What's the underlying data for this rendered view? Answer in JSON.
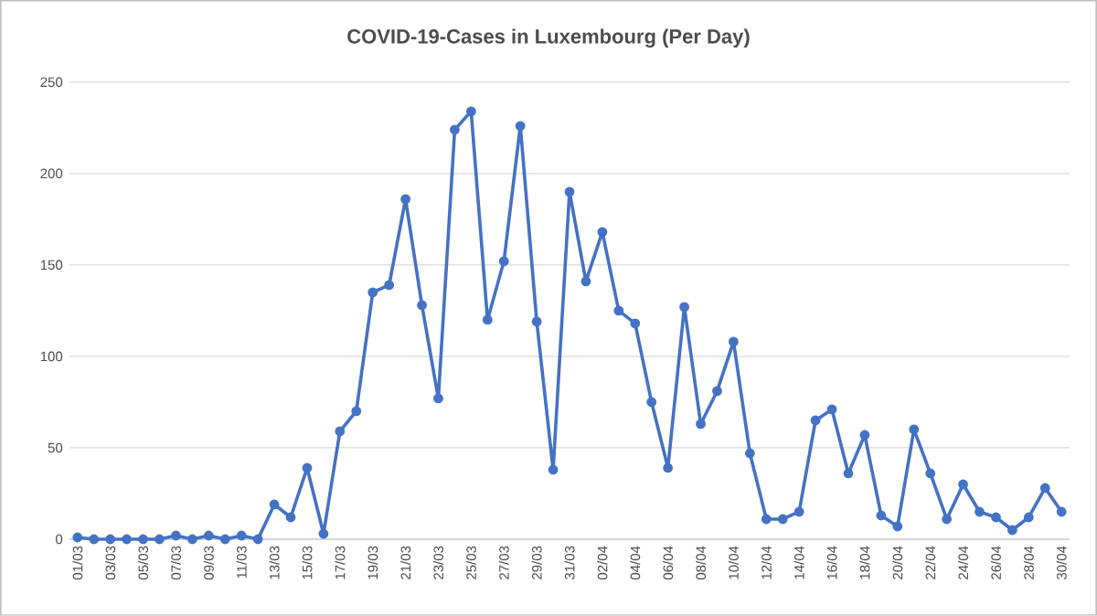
{
  "chart_data": {
    "type": "line",
    "title": "COVID-19-Cases in Luxembourg (Per Day)",
    "categories": [
      "01/03",
      null,
      "03/03",
      null,
      "05/03",
      null,
      "07/03",
      null,
      "09/03",
      null,
      "11/03",
      null,
      "13/03",
      null,
      "15/03",
      null,
      "17/03",
      null,
      "19/03",
      null,
      "21/03",
      null,
      "23/03",
      null,
      "25/03",
      null,
      "27/03",
      null,
      "29/03",
      null,
      "31/03",
      null,
      "02/04",
      null,
      "04/04",
      null,
      "06/04",
      null,
      "08/04",
      null,
      "10/04",
      null,
      "12/04",
      null,
      "14/04",
      null,
      "16/04",
      null,
      "18/04",
      null,
      "20/04",
      null,
      "22/04",
      null,
      "24/04",
      null,
      "26/04",
      null,
      "28/04",
      null,
      "30/04"
    ],
    "values": [
      1,
      0,
      0,
      0,
      0,
      0,
      2,
      0,
      2,
      0,
      2,
      0,
      19,
      12,
      39,
      3,
      59,
      70,
      135,
      139,
      186,
      128,
      77,
      224,
      234,
      120,
      152,
      226,
      119,
      38,
      190,
      141,
      168,
      125,
      118,
      75,
      39,
      127,
      63,
      81,
      108,
      47,
      11,
      11,
      15,
      65,
      71,
      36,
      57,
      13,
      7,
      60,
      36,
      11,
      30,
      15,
      12,
      5,
      12,
      28,
      15
    ],
    "color": "#4472c4",
    "ylim": [
      0,
      250
    ],
    "yticks": [
      0,
      50,
      100,
      150,
      200,
      250
    ],
    "grid": "y",
    "marker": "circle",
    "line_style": "solid"
  }
}
